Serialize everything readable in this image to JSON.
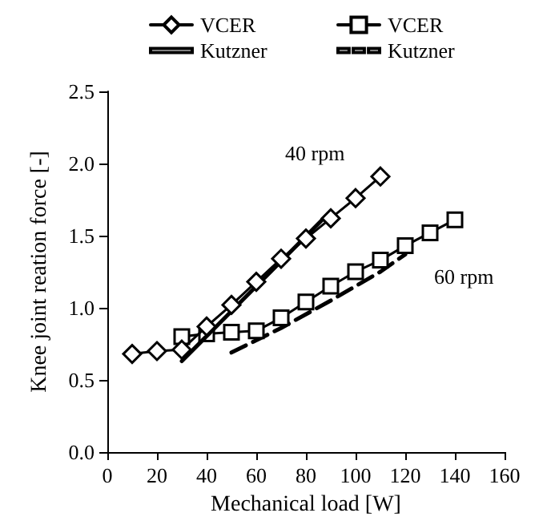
{
  "chart_data": {
    "type": "line",
    "xlabel": "Mechanical load [W]",
    "ylabel": "Knee joint reation force [-]",
    "xlim": [
      0,
      160
    ],
    "xticks": [
      0,
      20,
      40,
      60,
      80,
      100,
      120,
      140,
      160
    ],
    "ylim": [
      0,
      2.5
    ],
    "yticks": [
      {
        "value": 0,
        "label": "0.0"
      },
      {
        "value": 0.5,
        "label": "0.5"
      },
      {
        "value": 1,
        "label": "1.0"
      },
      {
        "value": 1.5,
        "label": "1.5"
      },
      {
        "value": 2,
        "label": "2.0"
      },
      {
        "value": 2.5,
        "label": "2.5"
      }
    ],
    "grid": false,
    "legend": "top",
    "line_style": "solid",
    "series": [
      {
        "name": "VCER",
        "color": "#000000",
        "marker": "diamond",
        "x": [
          10,
          20,
          30,
          40,
          50,
          60,
          70,
          80,
          90,
          100,
          110
        ],
        "values": [
          0.68,
          0.7,
          0.71,
          0.87,
          1.02,
          1.18,
          1.34,
          1.48,
          1.62,
          1.76,
          1.91
        ]
      },
      {
        "name": "Kutzner",
        "color": "#000000",
        "marker": "none",
        "x": [
          30,
          90
        ],
        "values": [
          0.63,
          1.67
        ]
      },
      {
        "name": "VCER",
        "color": "#000000",
        "marker": "square",
        "x": [
          30,
          40,
          50,
          60,
          70,
          80,
          90,
          100,
          110,
          120,
          130,
          140
        ],
        "values": [
          0.8,
          0.82,
          0.83,
          0.84,
          0.93,
          1.04,
          1.15,
          1.25,
          1.33,
          1.43,
          1.52,
          1.61
        ]
      },
      {
        "name": "Kutzner",
        "color": "#000000",
        "marker": "none",
        "line_style": "dashed",
        "x": [
          50,
          70,
          90,
          110,
          120
        ],
        "values": [
          0.69,
          0.86,
          1.05,
          1.25,
          1.37
        ]
      }
    ],
    "annotations": [
      "40 rpm",
      "60 rpm"
    ]
  }
}
